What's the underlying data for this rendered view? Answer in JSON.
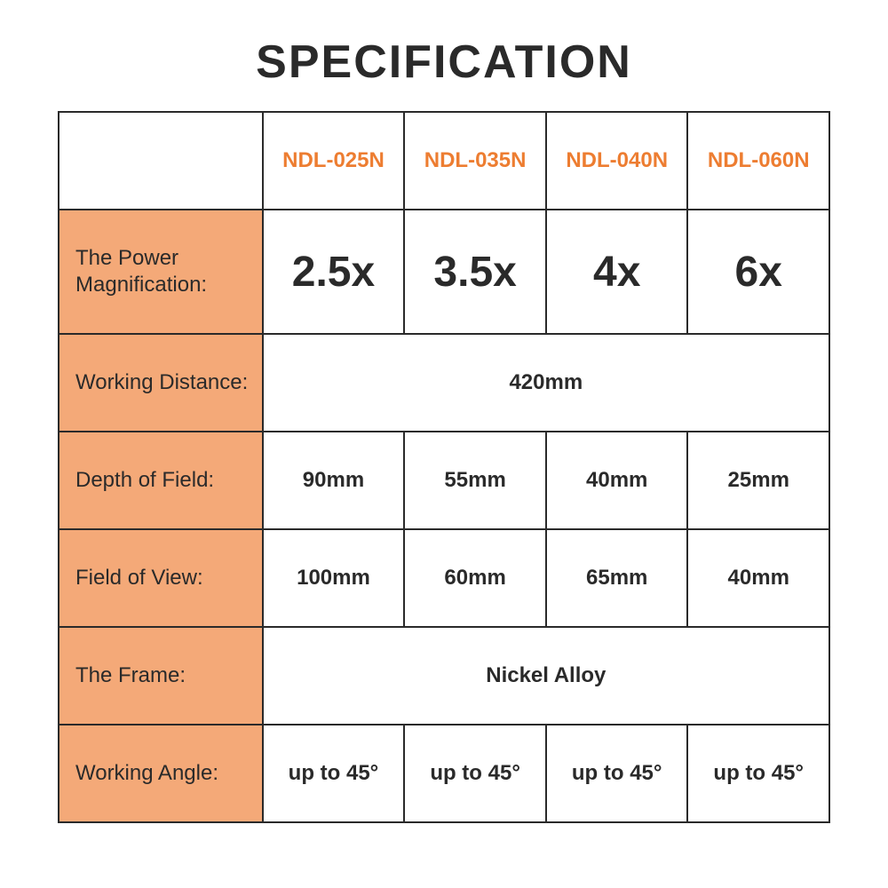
{
  "title": "SPECIFICATION",
  "models": [
    "NDL-025N",
    "NDL-035N",
    "NDL-040N",
    "NDL-060N"
  ],
  "rows": {
    "magnification": {
      "label": "The Power Magnification:",
      "values": [
        "2.5x",
        "3.5x",
        "4x",
        "6x"
      ]
    },
    "workingDistance": {
      "label": "Working Distance:",
      "merged": "420mm"
    },
    "depthOfField": {
      "label": "Depth of Field:",
      "values": [
        "90mm",
        "55mm",
        "40mm",
        "25mm"
      ]
    },
    "fieldOfView": {
      "label": "Field of View:",
      "values": [
        "100mm",
        "60mm",
        "65mm",
        "40mm"
      ]
    },
    "frame": {
      "label": "The Frame:",
      "merged": "Nickel Alloy"
    },
    "workingAngle": {
      "label": "Working Angle:",
      "values": [
        "up to 45°",
        "up to 45°",
        "up to 45°",
        "up to 45°"
      ]
    }
  },
  "colors": {
    "accent": "#ed7d31",
    "labelBg": "#f4a978",
    "border": "#2a2a2a",
    "text": "#2a2a2a",
    "background": "#ffffff"
  }
}
